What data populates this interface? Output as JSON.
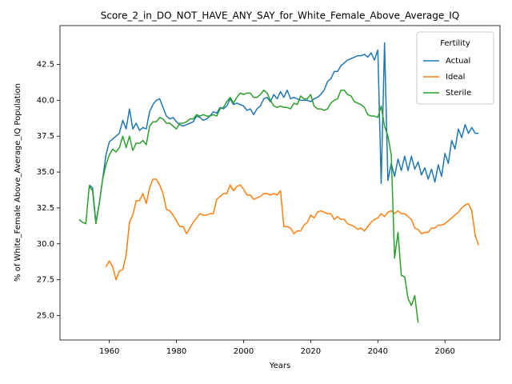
{
  "chart_data": {
    "type": "line",
    "title": "Score_2_in_DO_NOT_HAVE_ANY_SAY_for_White_Female_Above_Average_IQ",
    "xlabel": "Years",
    "ylabel": "% of White_Female Above_Average_IQ Population",
    "xlim": [
      1945.3,
      2076.4
    ],
    "ylim": [
      23.3,
      45.2
    ],
    "xticks": [
      1960,
      1980,
      2000,
      2020,
      2040,
      2060
    ],
    "yticks": [
      {
        "value": 25.0,
        "label": "25.0"
      },
      27.5,
      {
        "value": 30.0,
        "label": "30.0"
      },
      32.5,
      {
        "value": 35.0,
        "label": "35.0"
      },
      37.5,
      {
        "value": 40.0,
        "label": "40.0"
      },
      42.5
    ],
    "grid": false,
    "legend": "upper right",
    "legend_title": "Fertility",
    "series": [
      {
        "name": "Actual",
        "color": "#1f77b4",
        "x": [
          1954,
          1955,
          1956,
          1957,
          1958,
          1959,
          1960,
          1961,
          1962,
          1963,
          1964,
          1965,
          1966,
          1967,
          1968,
          1969,
          1970,
          1971,
          1972,
          1973,
          1974,
          1975,
          1976,
          1977,
          1978,
          1979,
          1980,
          1981,
          1982,
          1983,
          1984,
          1985,
          1986,
          1987,
          1988,
          1989,
          1990,
          1991,
          1992,
          1993,
          1994,
          1995,
          1996,
          1997,
          1998,
          1999,
          2000,
          2001,
          2002,
          2003,
          2004,
          2005,
          2006,
          2007,
          2008,
          2009,
          2010,
          2011,
          2012,
          2013,
          2014,
          2015,
          2016,
          2017,
          2018,
          2019,
          2020,
          2021,
          2022,
          2023,
          2024,
          2025,
          2026,
          2027,
          2028,
          2029,
          2030,
          2031,
          2032,
          2033,
          2034,
          2035,
          2036,
          2037,
          2038,
          2039,
          2040,
          2041,
          2042,
          2043,
          2044,
          2045,
          2046,
          2047,
          2048,
          2049,
          2050,
          2051,
          2052,
          2053,
          2054,
          2055,
          2056,
          2057,
          2058,
          2059,
          2060,
          2061,
          2062,
          2063,
          2064,
          2065,
          2066,
          2067,
          2068,
          2069,
          2070
        ],
        "values": [
          34.1,
          33.9,
          31.5,
          32.8,
          34.5,
          36.2,
          37.1,
          37.3,
          37.5,
          37.7,
          38.6,
          38.0,
          39.4,
          38.0,
          38.4,
          37.9,
          38.1,
          38.0,
          39.2,
          39.7,
          40.0,
          40.1,
          39.5,
          38.9,
          38.7,
          38.8,
          38.5,
          38.3,
          38.2,
          38.3,
          38.4,
          38.5,
          38.9,
          38.8,
          38.6,
          38.7,
          38.9,
          39.2,
          39.1,
          39.5,
          39.4,
          39.6,
          40.1,
          39.7,
          39.8,
          39.7,
          39.6,
          39.3,
          39.4,
          39.0,
          39.4,
          39.6,
          40.1,
          40.2,
          39.9,
          40.4,
          40.1,
          40.6,
          40.2,
          40.7,
          40.1,
          40.2,
          40.1,
          40.0,
          40.0,
          40.0,
          39.9,
          40.1,
          40.2,
          40.4,
          40.7,
          41.3,
          41.5,
          42.0,
          42.0,
          42.4,
          42.6,
          42.8,
          42.9,
          43.0,
          43.1,
          43.1,
          43.2,
          43.0,
          43.3,
          42.8,
          43.5,
          34.2,
          44.0,
          34.4,
          35.6,
          34.7,
          35.9,
          35.1,
          36.1,
          35.1,
          36.1,
          35.2,
          35.7,
          34.8,
          35.3,
          34.5,
          35.2,
          34.3,
          35.5,
          34.7,
          36.3,
          35.6,
          37.2,
          36.6,
          38.0,
          37.4,
          38.3,
          37.7,
          38.1,
          37.7,
          37.7
        ]
      },
      {
        "name": "Ideal",
        "color": "#ff7f0e",
        "x": [
          1959,
          1960,
          1961,
          1962,
          1963,
          1964,
          1965,
          1966,
          1967,
          1968,
          1969,
          1970,
          1971,
          1972,
          1973,
          1974,
          1975,
          1976,
          1977,
          1978,
          1979,
          1980,
          1981,
          1982,
          1983,
          1984,
          1985,
          1986,
          1987,
          1988,
          1989,
          1990,
          1991,
          1992,
          1993,
          1994,
          1995,
          1996,
          1997,
          1998,
          1999,
          2000,
          2001,
          2002,
          2003,
          2004,
          2005,
          2006,
          2007,
          2008,
          2009,
          2010,
          2011,
          2012,
          2013,
          2014,
          2015,
          2016,
          2017,
          2018,
          2019,
          2020,
          2021,
          2022,
          2023,
          2024,
          2025,
          2026,
          2027,
          2028,
          2029,
          2030,
          2031,
          2032,
          2033,
          2034,
          2035,
          2036,
          2037,
          2038,
          2039,
          2040,
          2041,
          2042,
          2043,
          2044,
          2045,
          2046,
          2047,
          2048,
          2049,
          2050,
          2051,
          2052,
          2053,
          2054,
          2055,
          2056,
          2057,
          2058,
          2059,
          2060,
          2061,
          2062,
          2063,
          2064,
          2065,
          2066,
          2067,
          2068,
          2069,
          2070
        ],
        "values": [
          28.4,
          28.8,
          28.4,
          27.5,
          28.1,
          28.2,
          29.2,
          31.5,
          32.0,
          33.0,
          33.0,
          33.5,
          32.8,
          33.9,
          34.5,
          34.5,
          34.1,
          33.5,
          32.4,
          32.3,
          32.0,
          31.6,
          31.2,
          31.2,
          30.7,
          31.1,
          31.5,
          31.8,
          32.1,
          32.0,
          32.0,
          32.1,
          32.1,
          33.1,
          33.3,
          33.5,
          33.5,
          34.1,
          33.7,
          34.0,
          34.1,
          33.8,
          33.4,
          33.4,
          33.1,
          33.2,
          33.3,
          33.5,
          33.5,
          33.4,
          33.5,
          33.4,
          33.7,
          31.2,
          31.2,
          31.1,
          30.7,
          30.9,
          30.9,
          31.3,
          31.5,
          32.0,
          31.8,
          32.2,
          32.3,
          32.2,
          32.1,
          32.1,
          31.7,
          31.9,
          31.7,
          31.7,
          31.4,
          31.3,
          31.2,
          31.0,
          31.1,
          30.9,
          31.2,
          31.5,
          31.7,
          31.8,
          32.1,
          31.9,
          32.2,
          32.3,
          32.1,
          32.3,
          32.1,
          32.1,
          31.9,
          31.7,
          31.1,
          31.0,
          30.7,
          30.8,
          30.8,
          31.1,
          31.1,
          31.3,
          31.3,
          31.4,
          31.6,
          31.8,
          32.0,
          32.2,
          32.5,
          32.7,
          32.8,
          32.3,
          30.6,
          29.9
        ]
      },
      {
        "name": "Sterile",
        "color": "#2ca02c",
        "x": [
          1951,
          1952,
          1953,
          1954,
          1955,
          1956,
          1957,
          1958,
          1959,
          1960,
          1961,
          1962,
          1963,
          1964,
          1965,
          1966,
          1967,
          1968,
          1969,
          1970,
          1971,
          1972,
          1973,
          1974,
          1975,
          1976,
          1977,
          1978,
          1979,
          1980,
          1981,
          1982,
          1983,
          1984,
          1985,
          1986,
          1987,
          1988,
          1989,
          1990,
          1991,
          1992,
          1993,
          1994,
          1995,
          1996,
          1997,
          1998,
          1999,
          2000,
          2001,
          2002,
          2003,
          2004,
          2005,
          2006,
          2007,
          2008,
          2009,
          2010,
          2011,
          2012,
          2013,
          2014,
          2015,
          2016,
          2017,
          2018,
          2019,
          2020,
          2021,
          2022,
          2023,
          2024,
          2025,
          2026,
          2027,
          2028,
          2029,
          2030,
          2031,
          2032,
          2033,
          2034,
          2035,
          2036,
          2037,
          2038,
          2039,
          2040,
          2041,
          2042,
          2043,
          2044,
          2045,
          2046,
          2047,
          2048,
          2049,
          2050,
          2051,
          2052
        ],
        "values": [
          31.7,
          31.5,
          31.4,
          34.0,
          33.7,
          31.4,
          32.8,
          34.5,
          35.5,
          36.2,
          36.6,
          36.4,
          36.7,
          37.5,
          36.7,
          37.5,
          36.5,
          37.0,
          37.0,
          37.2,
          36.9,
          38.2,
          38.5,
          38.5,
          38.8,
          38.7,
          38.4,
          38.4,
          38.2,
          38.0,
          38.4,
          38.4,
          38.5,
          38.7,
          38.7,
          39.0,
          38.9,
          39.0,
          38.9,
          38.9,
          39.0,
          38.9,
          39.4,
          39.5,
          39.9,
          40.2,
          39.8,
          40.2,
          40.5,
          40.4,
          40.5,
          40.5,
          40.2,
          40.2,
          40.4,
          40.7,
          40.5,
          40.0,
          39.6,
          39.5,
          39.6,
          39.5,
          39.5,
          39.4,
          39.8,
          39.7,
          40.3,
          40.1,
          40.1,
          40.4,
          39.6,
          39.4,
          39.4,
          39.3,
          39.4,
          39.8,
          40.0,
          40.1,
          40.7,
          40.7,
          40.4,
          40.3,
          39.9,
          39.8,
          39.7,
          39.5,
          39.0,
          38.9,
          38.9,
          38.8,
          39.6,
          38.2,
          37.5,
          36.2,
          29.0,
          30.8,
          27.8,
          27.7,
          26.2,
          25.7,
          26.4,
          24.5
        ]
      }
    ]
  }
}
